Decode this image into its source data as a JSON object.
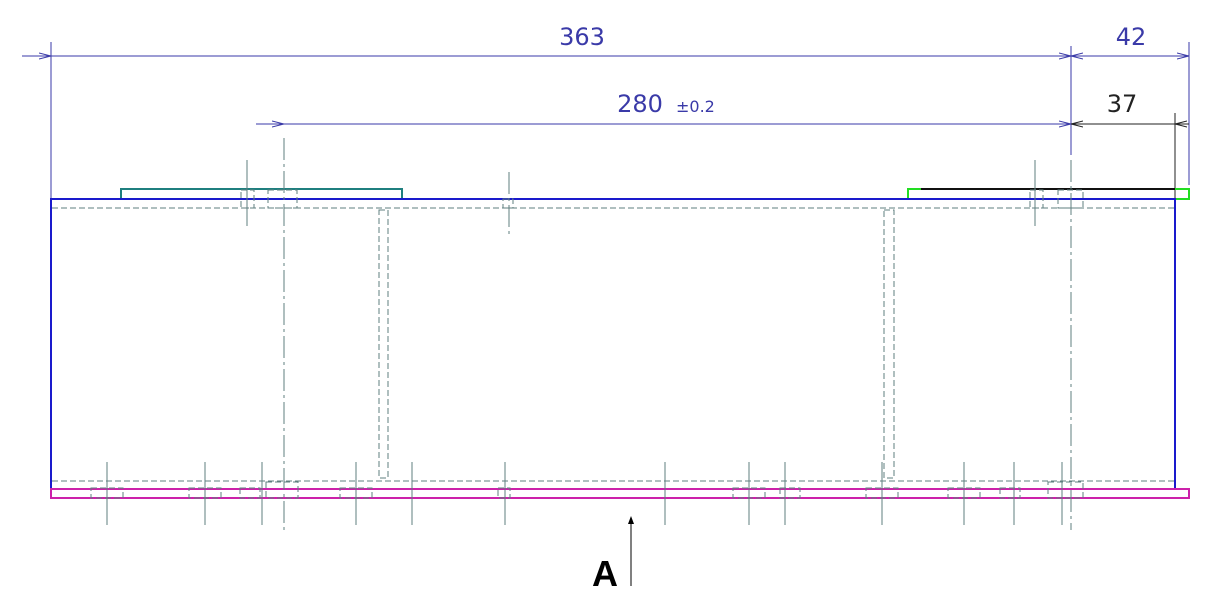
{
  "drawing": {
    "dimensions": {
      "overall_length": "363",
      "hole_spacing": "280",
      "hole_spacing_tolerance": "±0.2",
      "right_offset_outer": "42",
      "right_offset_inner": "37"
    },
    "view_label": "A",
    "colors": {
      "dimension": "#3a3aa8",
      "dimension_dark": "#222222",
      "outline": "#1a1acc",
      "hidden_line": "#5f7f7f",
      "center_line": "#5f7f7f",
      "top_plate": "#1f7f7f",
      "bottom_plate": "#cc22aa",
      "right_plate": "#22dd22",
      "right_plate_edge": "#111111",
      "label": "#000000"
    }
  }
}
